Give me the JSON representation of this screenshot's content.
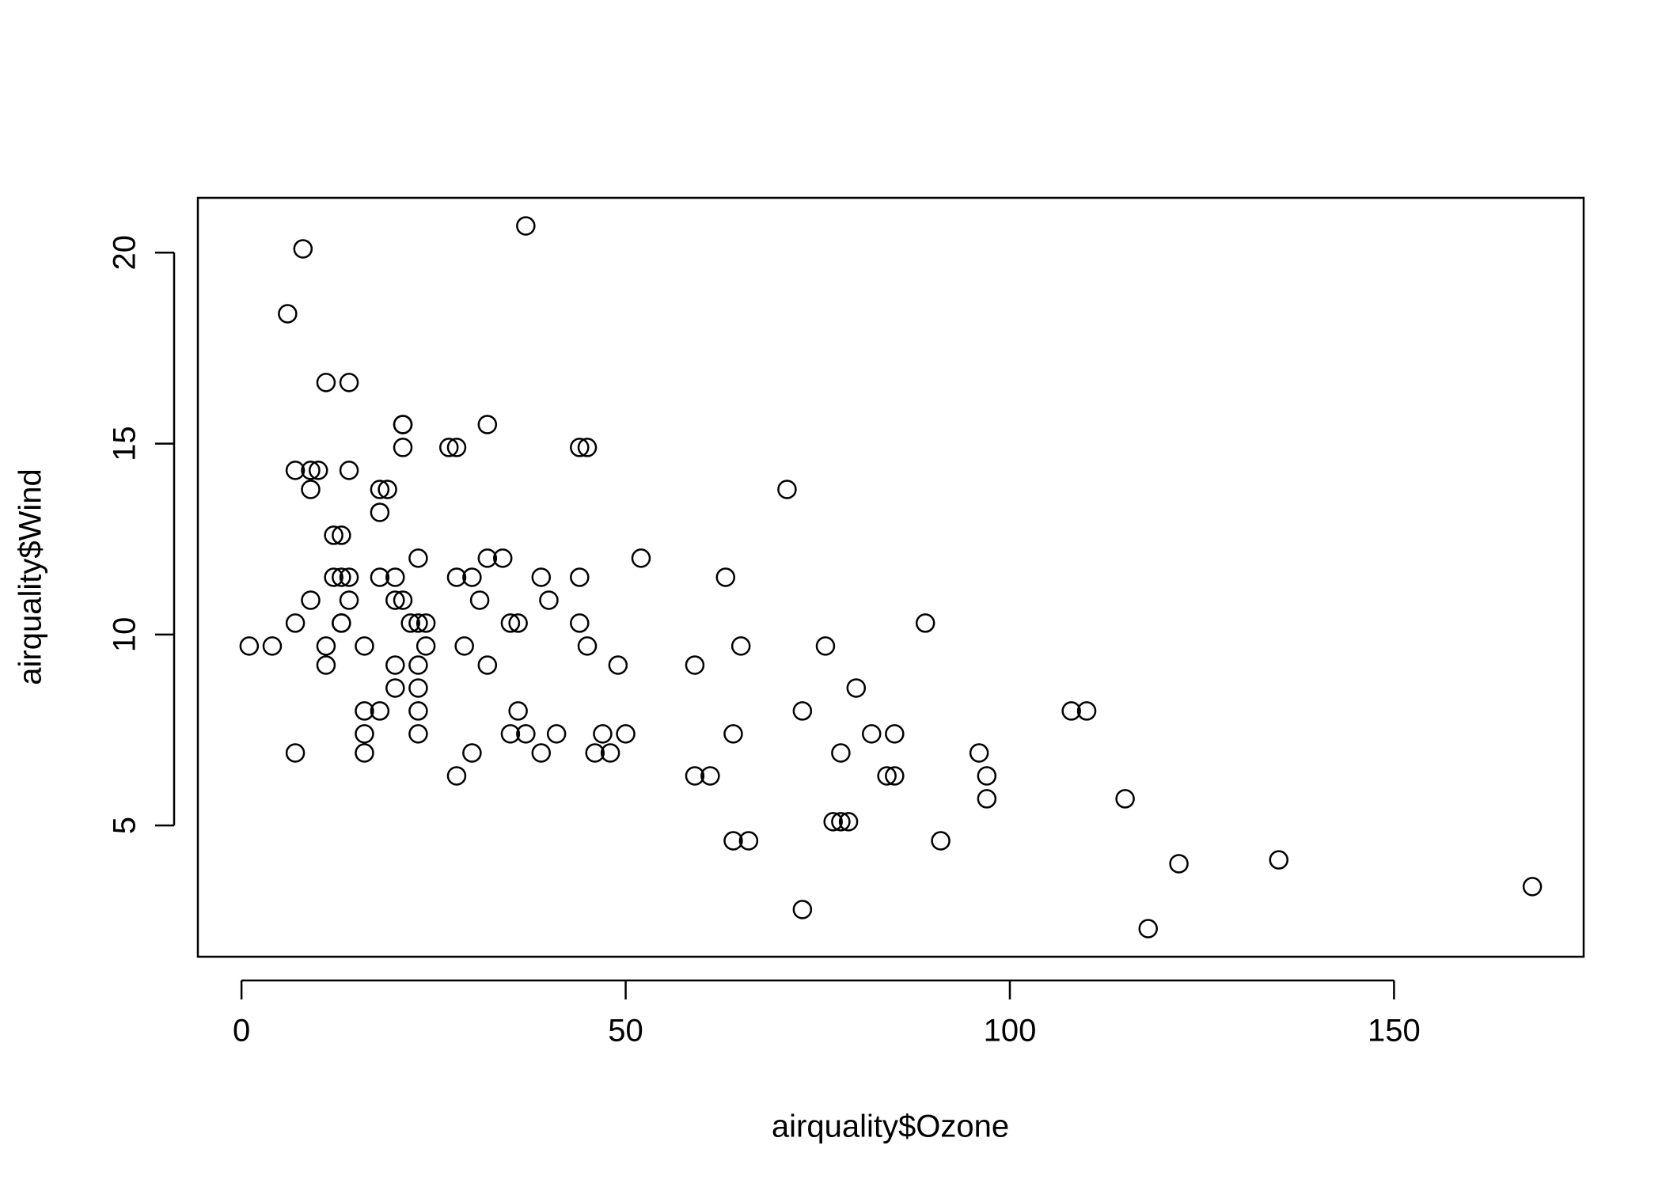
{
  "chart_data": {
    "type": "scatter",
    "x_label": "airquality$Ozone",
    "y_label": "airquality$Wind",
    "x": [
      41,
      36,
      12,
      18,
      28,
      23,
      19,
      8,
      7,
      16,
      11,
      14,
      18,
      14,
      34,
      6,
      30,
      11,
      1,
      11,
      4,
      32,
      23,
      45,
      115,
      37,
      29,
      71,
      39,
      23,
      21,
      37,
      20,
      12,
      13,
      135,
      49,
      32,
      64,
      40,
      77,
      97,
      97,
      85,
      10,
      27,
      7,
      48,
      35,
      61,
      79,
      63,
      16,
      80,
      108,
      20,
      52,
      82,
      50,
      64,
      59,
      39,
      9,
      16,
      78,
      35,
      66,
      122,
      89,
      110,
      44,
      28,
      65,
      22,
      59,
      23,
      31,
      44,
      21,
      9,
      45,
      168,
      73,
      76,
      118,
      84,
      85,
      96,
      78,
      73,
      91,
      47,
      32,
      20,
      23,
      21,
      24,
      44,
      21,
      28,
      9,
      13,
      46,
      18,
      13,
      24,
      16,
      13,
      23,
      36,
      7,
      14,
      30,
      14,
      18,
      20
    ],
    "values": [
      7.4,
      8.0,
      12.6,
      11.5,
      14.9,
      8.6,
      13.8,
      20.1,
      6.9,
      9.7,
      9.2,
      10.9,
      13.2,
      11.5,
      12.0,
      18.4,
      11.5,
      9.7,
      9.7,
      16.6,
      9.7,
      12.0,
      12.0,
      14.9,
      5.7,
      7.4,
      9.7,
      13.8,
      11.5,
      8.0,
      14.9,
      20.7,
      9.2,
      11.5,
      10.3,
      4.1,
      9.2,
      9.2,
      4.6,
      10.9,
      5.1,
      6.3,
      5.7,
      7.4,
      14.3,
      14.9,
      14.3,
      6.9,
      10.3,
      6.3,
      5.1,
      11.5,
      6.9,
      8.6,
      8.0,
      8.6,
      12.0,
      7.4,
      7.4,
      7.4,
      9.2,
      6.9,
      13.8,
      7.4,
      6.9,
      7.4,
      4.6,
      4.0,
      10.3,
      8.0,
      11.5,
      11.5,
      9.7,
      10.3,
      6.3,
      7.4,
      10.9,
      10.3,
      15.5,
      14.3,
      9.7,
      3.4,
      8.0,
      9.7,
      2.3,
      6.3,
      6.3,
      6.9,
      5.1,
      2.8,
      4.6,
      7.4,
      15.5,
      10.9,
      10.3,
      10.9,
      9.7,
      14.9,
      15.5,
      6.3,
      10.9,
      11.5,
      6.9,
      13.8,
      10.3,
      10.3,
      8.0,
      12.6,
      9.2,
      10.3,
      10.3,
      16.6,
      6.9,
      14.3,
      8.0,
      11.5
    ],
    "color": "#000000",
    "xlim": [
      -5.68,
      174.68
    ],
    "xticks": [
      0,
      50,
      100,
      150
    ],
    "ylim": [
      1.564,
      21.436
    ],
    "yticks": [
      5,
      10,
      15,
      20
    ]
  }
}
